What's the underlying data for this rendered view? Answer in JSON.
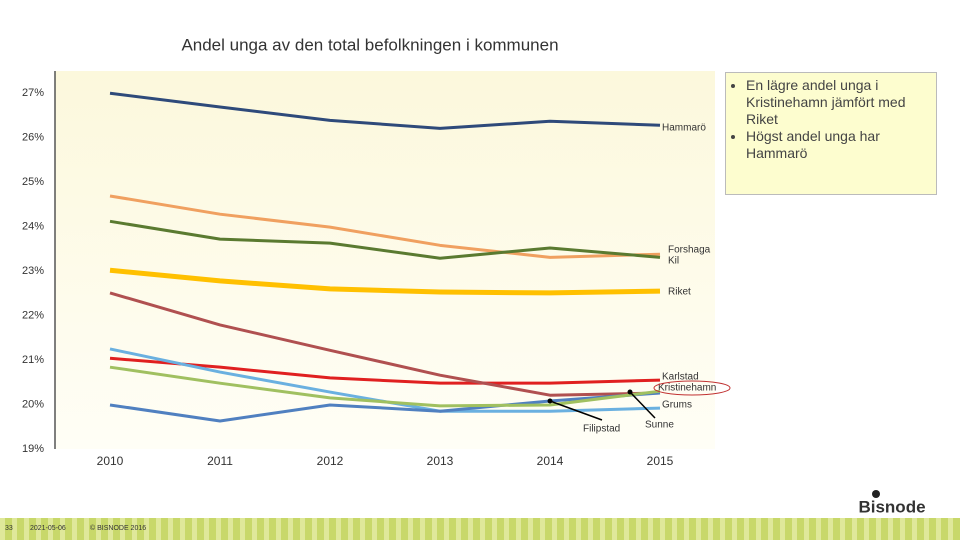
{
  "chart_data": {
    "type": "line",
    "title": "Andel unga av den total befolkningen i kommunen",
    "categories": [
      "2010",
      "2011",
      "2012",
      "2013",
      "2014",
      "2015"
    ],
    "series": [
      {
        "name": "Hammarö",
        "color": "#2e4a7a",
        "values": [
          27.0,
          26.69,
          26.39,
          26.21,
          26.37,
          26.28
        ]
      },
      {
        "name": "Forshaga",
        "color": "#f0a060",
        "values": [
          24.69,
          24.28,
          23.99,
          23.58,
          23.31,
          23.38
        ]
      },
      {
        "name": "Kil",
        "color": "#5a7a30",
        "values": [
          24.12,
          23.72,
          23.63,
          23.29,
          23.52,
          23.31
        ]
      },
      {
        "name": "Riket",
        "color": "#ffc000",
        "values": [
          23.02,
          22.78,
          22.6,
          22.53,
          22.51,
          22.55
        ]
      },
      {
        "name": "Karlstad",
        "color": "#e02020",
        "values": [
          21.04,
          20.84,
          20.6,
          20.48,
          20.48,
          20.55
        ]
      },
      {
        "name": "Kristinehamn",
        "color": "#b05050",
        "values": [
          22.51,
          21.79,
          21.22,
          20.66,
          20.21,
          20.26
        ]
      },
      {
        "name": "Grums",
        "color": "#6ab0e0",
        "values": [
          21.25,
          20.73,
          20.28,
          19.85,
          19.85,
          19.92
        ]
      },
      {
        "name": "Filipstad",
        "color": "#5080c0",
        "values": [
          19.99,
          19.63,
          19.99,
          19.85,
          20.08,
          20.26
        ]
      },
      {
        "name": "Sunne",
        "color": "#a0c060",
        "values": [
          20.84,
          20.48,
          20.15,
          19.97,
          19.99,
          20.3
        ]
      }
    ],
    "ylim": [
      19,
      27.5
    ],
    "yticks": [
      {
        "value": 19,
        "label": "19%"
      },
      {
        "value": 20,
        "label": "20%"
      },
      {
        "value": 21,
        "label": "21%"
      },
      {
        "value": 22,
        "label": "22%"
      },
      {
        "value": 23,
        "label": "23%"
      },
      {
        "value": 24,
        "label": "24%"
      },
      {
        "value": 25,
        "label": "25%"
      },
      {
        "value": 26,
        "label": "26%"
      },
      {
        "value": 27,
        "label": "27%"
      }
    ],
    "grid": false
  },
  "callout": [
    "En lägre andel unga i Kristinehamn jämfört med Riket",
    "Högst andel unga har Hammarö"
  ],
  "footer": {
    "page": "33",
    "date": "2021-05-06",
    "copyright": "© BISNODE 2016",
    "logo": "Bisnode"
  }
}
